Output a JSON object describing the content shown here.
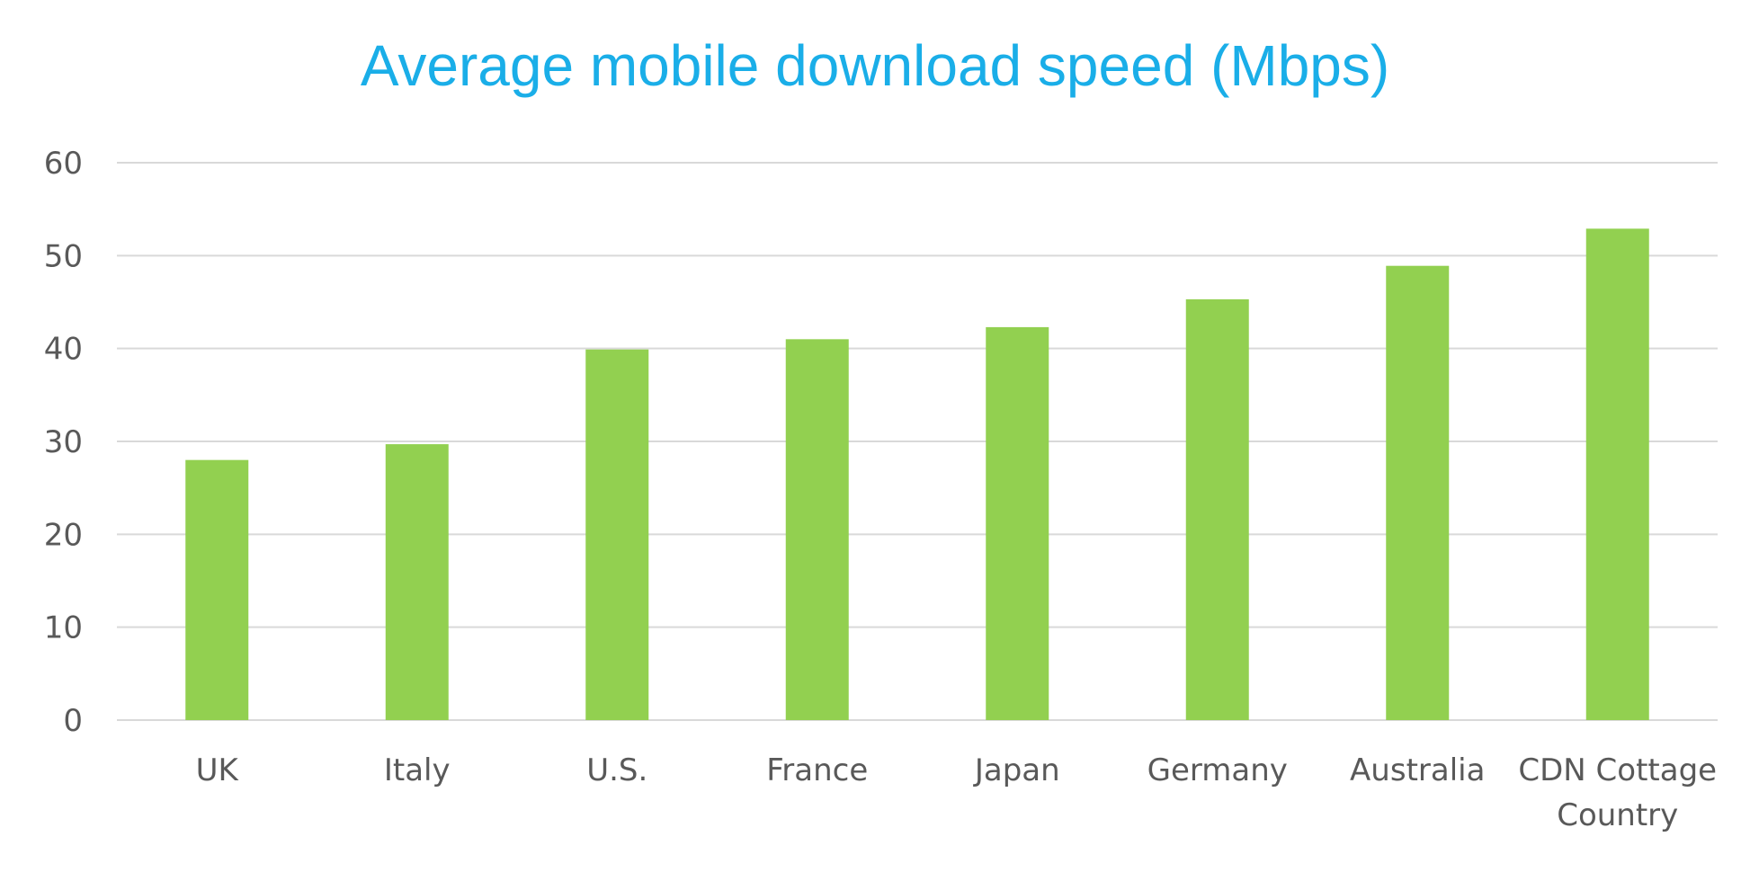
{
  "chart_data": {
    "type": "bar",
    "title": "Average mobile download speed (Mbps)",
    "xlabel": "",
    "ylabel": "",
    "categories": [
      "UK",
      "Italy",
      "U.S.",
      "France",
      "Japan",
      "Germany",
      "Australia",
      "CDN Cottage Country"
    ],
    "category_lines": [
      [
        "UK"
      ],
      [
        "Italy"
      ],
      [
        "U.S."
      ],
      [
        "France"
      ],
      [
        "Japan"
      ],
      [
        "Germany"
      ],
      [
        "Australia"
      ],
      [
        "CDN Cottage",
        "Country"
      ]
    ],
    "values": [
      28,
      29.7,
      39.9,
      41,
      42.3,
      45.3,
      48.9,
      52.9
    ],
    "ylim": [
      0,
      60
    ],
    "yticks": [
      0,
      10,
      20,
      30,
      40,
      50,
      60
    ],
    "grid": true,
    "legend": "none"
  },
  "colors": {
    "title": "#1aaee8",
    "bar": "#92d050",
    "grid": "#d9d9d9",
    "axis_text": "#595959"
  }
}
